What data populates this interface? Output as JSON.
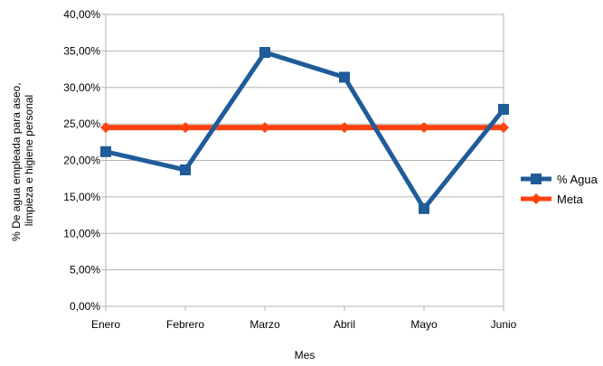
{
  "chart_data": {
    "type": "line",
    "categories": [
      "Enero",
      "Febrero",
      "Marzo",
      "Abril",
      "Mayo",
      "Junio"
    ],
    "series": [
      {
        "name": "% Agua",
        "values": [
          0.212,
          0.187,
          0.348,
          0.314,
          0.134,
          0.27
        ],
        "color": "#1f5c99",
        "marker": "square"
      },
      {
        "name": "Meta",
        "values": [
          0.245,
          0.245,
          0.245,
          0.245,
          0.245,
          0.245
        ],
        "color": "#ff420e",
        "marker": "diamond"
      }
    ],
    "xlabel": "Mes",
    "ylabel_lines": [
      "% De agua empleada para aseo,",
      "limpieza e higiene personal"
    ],
    "ylim": [
      0,
      0.4
    ],
    "yticks": [
      0,
      0.05,
      0.1,
      0.15,
      0.2,
      0.25,
      0.3,
      0.35,
      0.4
    ],
    "ytick_labels": [
      "0,00%",
      "5,00%",
      "10,00%",
      "15,00%",
      "20,00%",
      "25,00%",
      "30,00%",
      "35,00%",
      "40,00%"
    ],
    "grid": true,
    "legend_position": "right"
  }
}
